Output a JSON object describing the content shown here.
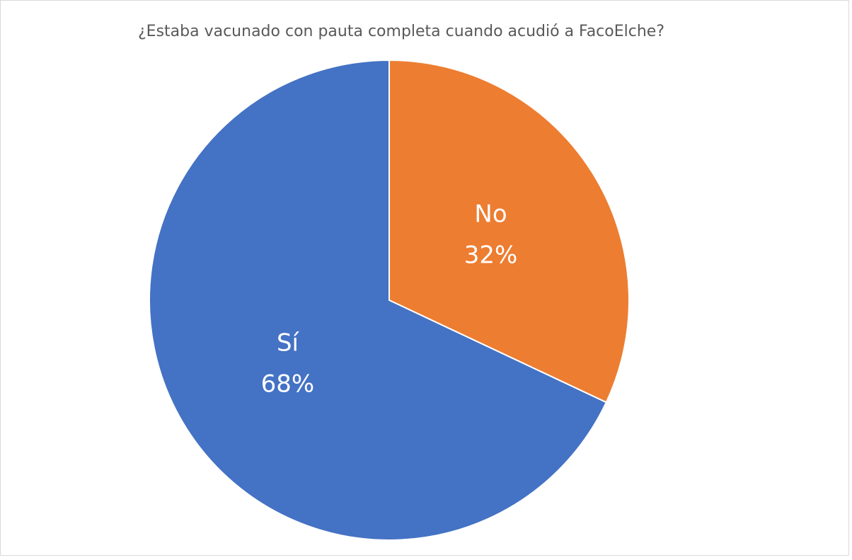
{
  "chart_data": {
    "type": "pie",
    "title": "¿Estaba vacunado con pauta completa cuando acudió a FacoElche?",
    "categories": [
      "No",
      "Sí"
    ],
    "values": [
      32,
      68
    ],
    "value_labels": [
      "32%",
      "68%"
    ],
    "colors": [
      "#ed7d31",
      "#4472c4"
    ]
  }
}
